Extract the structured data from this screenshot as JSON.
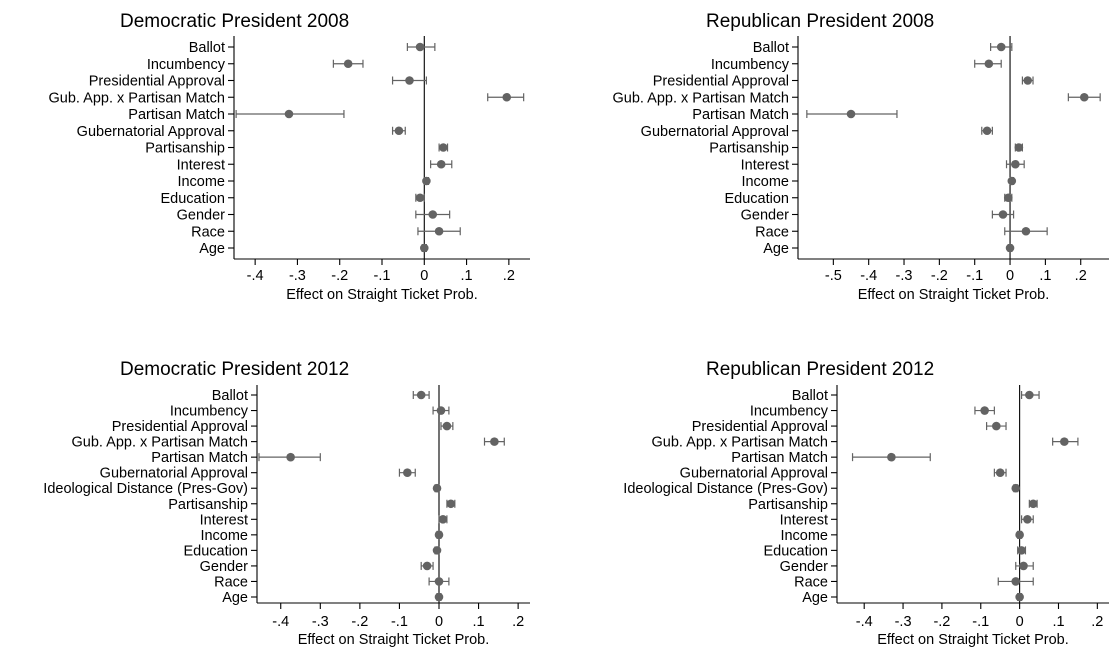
{
  "chart_data": [
    {
      "type": "scatter",
      "title": "Democratic President 2008",
      "xlabel": "Effect on Straight Ticket Prob.",
      "ylabel": "",
      "xlim": [
        -0.45,
        0.25
      ],
      "xticks": [
        -0.4,
        -0.3,
        -0.2,
        -0.1,
        0,
        0.1,
        0.2
      ],
      "xtick_labels": [
        "-.4",
        "-.3",
        "-.2",
        "-.1",
        "0",
        ".1",
        ".2"
      ],
      "grid": false,
      "reference_line": 0,
      "categories": [
        "Ballot",
        "Incumbency",
        "Presidential Approval",
        "Gub. App. x Partisan Match",
        "Partisan Match",
        "Gubernatorial Approval",
        "Partisanship",
        "Interest",
        "Income",
        "Education",
        "Gender",
        "Race",
        "Age"
      ],
      "estimates": [
        -0.01,
        -0.18,
        -0.035,
        0.195,
        -0.32,
        -0.06,
        0.045,
        0.04,
        0.005,
        -0.01,
        0.02,
        0.035,
        0.0
      ],
      "ci_low": [
        -0.04,
        -0.215,
        -0.075,
        0.15,
        -0.445,
        -0.075,
        0.035,
        0.015,
        0.0,
        -0.02,
        -0.02,
        -0.015,
        -0.005
      ],
      "ci_high": [
        0.025,
        -0.145,
        0.005,
        0.235,
        -0.19,
        -0.045,
        0.055,
        0.065,
        0.01,
        0.0,
        0.06,
        0.085,
        0.005
      ]
    },
    {
      "type": "scatter",
      "title": "Republican President 2008",
      "xlabel": "Effect on Straight Ticket Prob.",
      "ylabel": "",
      "xlim": [
        -0.6,
        0.28
      ],
      "xticks": [
        -0.5,
        -0.4,
        -0.3,
        -0.2,
        -0.1,
        0,
        0.1,
        0.2
      ],
      "xtick_labels": [
        "-.5",
        "-.4",
        "-.3",
        "-.2",
        "-.1",
        "0",
        ".1",
        ".2"
      ],
      "grid": false,
      "reference_line": 0,
      "categories": [
        "Ballot",
        "Incumbency",
        "Presidential Approval",
        "Gub. App. x Partisan Match",
        "Partisan Match",
        "Gubernatorial Approval",
        "Partisanship",
        "Interest",
        "Income",
        "Education",
        "Gender",
        "Race",
        "Age"
      ],
      "estimates": [
        -0.025,
        -0.06,
        0.05,
        0.21,
        -0.45,
        -0.065,
        0.025,
        0.015,
        0.005,
        -0.005,
        -0.02,
        0.045,
        0.0
      ],
      "ci_low": [
        -0.055,
        -0.1,
        0.035,
        0.165,
        -0.575,
        -0.08,
        0.015,
        -0.01,
        0.0,
        -0.015,
        -0.05,
        -0.015,
        -0.005
      ],
      "ci_high": [
        0.005,
        -0.025,
        0.065,
        0.255,
        -0.32,
        -0.05,
        0.035,
        0.04,
        0.01,
        0.005,
        0.01,
        0.105,
        0.005
      ]
    },
    {
      "type": "scatter",
      "title": "Democratic President 2012",
      "xlabel": "Effect on Straight Ticket Prob.",
      "ylabel": "",
      "xlim": [
        -0.46,
        0.23
      ],
      "xticks": [
        -0.4,
        -0.3,
        -0.2,
        -0.1,
        0,
        0.1,
        0.2
      ],
      "xtick_labels": [
        "-.4",
        "-.3",
        "-.2",
        "-.1",
        "0",
        ".1",
        ".2"
      ],
      "grid": false,
      "reference_line": 0,
      "categories": [
        "Ballot",
        "Incumbency",
        "Presidential Approval",
        "Gub. App. x Partisan Match",
        "Partisan Match",
        "Gubernatorial Approval",
        "Ideological Distance (Pres-Gov)",
        "Partisanship",
        "Interest",
        "Income",
        "Education",
        "Gender",
        "Race",
        "Age"
      ],
      "estimates": [
        -0.045,
        0.005,
        0.02,
        0.14,
        -0.375,
        -0.08,
        -0.005,
        0.03,
        0.01,
        0.0,
        -0.005,
        -0.03,
        0.0,
        0.0
      ],
      "ci_low": [
        -0.065,
        -0.015,
        0.005,
        0.115,
        -0.455,
        -0.1,
        -0.01,
        0.02,
        0.0,
        -0.005,
        -0.01,
        -0.045,
        -0.025,
        -0.005
      ],
      "ci_high": [
        -0.025,
        0.025,
        0.035,
        0.165,
        -0.3,
        -0.06,
        0.0,
        0.04,
        0.02,
        0.005,
        0.0,
        -0.015,
        0.025,
        0.005
      ]
    },
    {
      "type": "scatter",
      "title": "Republican President 2012",
      "xlabel": "Effect on Straight Ticket Prob.",
      "ylabel": "",
      "xlim": [
        -0.47,
        0.23
      ],
      "xticks": [
        -0.4,
        -0.3,
        -0.2,
        -0.1,
        0,
        0.1,
        0.2
      ],
      "xtick_labels": [
        "-.4",
        "-.3",
        "-.2",
        "-.1",
        "0",
        ".1",
        ".2"
      ],
      "grid": false,
      "reference_line": 0,
      "categories": [
        "Ballot",
        "Incumbency",
        "Presidential Approval",
        "Gub. App. x Partisan Match",
        "Partisan Match",
        "Gubernatorial Approval",
        "Ideological Distance (Pres-Gov)",
        "Partisanship",
        "Interest",
        "Income",
        "Education",
        "Gender",
        "Race",
        "Age"
      ],
      "estimates": [
        0.025,
        -0.09,
        -0.06,
        0.115,
        -0.33,
        -0.05,
        -0.01,
        0.035,
        0.02,
        0.0,
        0.005,
        0.01,
        -0.01,
        0.0
      ],
      "ci_low": [
        0.005,
        -0.115,
        -0.085,
        0.085,
        -0.43,
        -0.065,
        -0.015,
        0.025,
        0.005,
        -0.005,
        -0.005,
        -0.01,
        -0.055,
        -0.005
      ],
      "ci_high": [
        0.05,
        -0.065,
        -0.035,
        0.15,
        -0.23,
        -0.035,
        -0.005,
        0.045,
        0.035,
        0.005,
        0.015,
        0.035,
        0.035,
        0.005
      ]
    }
  ],
  "colors": {
    "marker": "#636363",
    "ci_line": "#636363",
    "axis": "#000000",
    "reference_line": "#000000",
    "background": "#ffffff"
  }
}
